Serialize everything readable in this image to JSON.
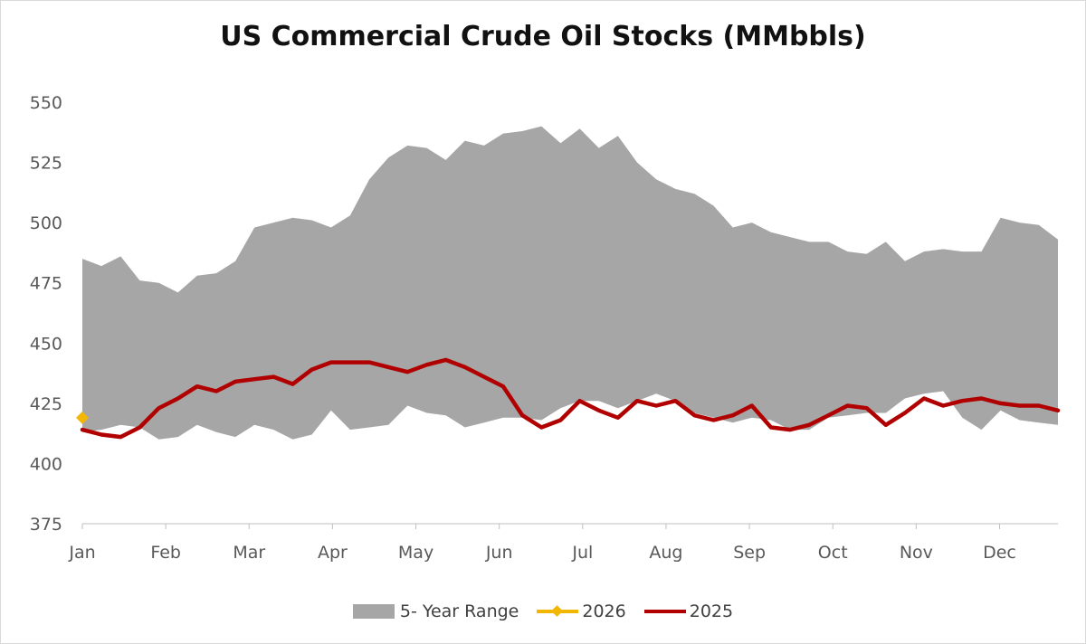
{
  "chart_data": {
    "type": "line",
    "title": "US Commercial Crude Oil Stocks (MMbbls)",
    "xlabel": "",
    "ylabel": "",
    "ylim": [
      375,
      550
    ],
    "yticks": [
      375,
      400,
      425,
      450,
      475,
      500,
      525,
      550
    ],
    "x_tick_labels": [
      "Jan",
      "Feb",
      "Mar",
      "Apr",
      "May",
      "Jun",
      "Jul",
      "Aug",
      "Sep",
      "Oct",
      "Nov",
      "Dec"
    ],
    "weeks": 52,
    "grid": false,
    "legend_position": "bottom",
    "series": [
      {
        "name": "5- Year Range",
        "kind": "range",
        "color": "#a6a6a6",
        "upper": [
          485,
          482,
          486,
          476,
          475,
          471,
          478,
          479,
          484,
          498,
          500,
          502,
          501,
          498,
          503,
          518,
          527,
          532,
          531,
          526,
          534,
          532,
          537,
          538,
          540,
          533,
          539,
          531,
          536,
          525,
          518,
          514,
          512,
          507,
          498,
          500,
          496,
          494,
          492,
          492,
          488,
          487,
          492,
          484,
          488,
          489,
          488,
          488,
          502,
          500,
          499,
          493
        ],
        "lower": [
          413,
          414,
          416,
          415,
          410,
          411,
          416,
          413,
          411,
          416,
          414,
          410,
          412,
          422,
          414,
          415,
          416,
          424,
          421,
          420,
          415,
          417,
          419,
          419,
          418,
          423,
          426,
          426,
          423,
          426,
          429,
          426,
          421,
          419,
          417,
          419,
          418,
          414,
          414,
          419,
          420,
          421,
          421,
          427,
          429,
          430,
          419,
          414,
          422,
          418,
          417,
          416
        ]
      },
      {
        "name": "2026",
        "color": "#f2b705",
        "marker": "diamond",
        "values": [
          419
        ]
      },
      {
        "name": "2025",
        "color": "#b00000",
        "values": [
          414,
          412,
          411,
          415,
          423,
          427,
          432,
          430,
          434,
          435,
          436,
          433,
          439,
          442,
          442,
          442,
          440,
          438,
          441,
          443,
          440,
          436,
          432,
          420,
          415,
          418,
          426,
          422,
          419,
          426,
          424,
          426,
          420,
          418,
          420,
          424,
          415,
          414,
          416,
          420,
          424,
          423,
          416,
          421,
          427,
          424,
          426,
          427,
          425,
          424,
          424,
          422
        ]
      }
    ]
  }
}
